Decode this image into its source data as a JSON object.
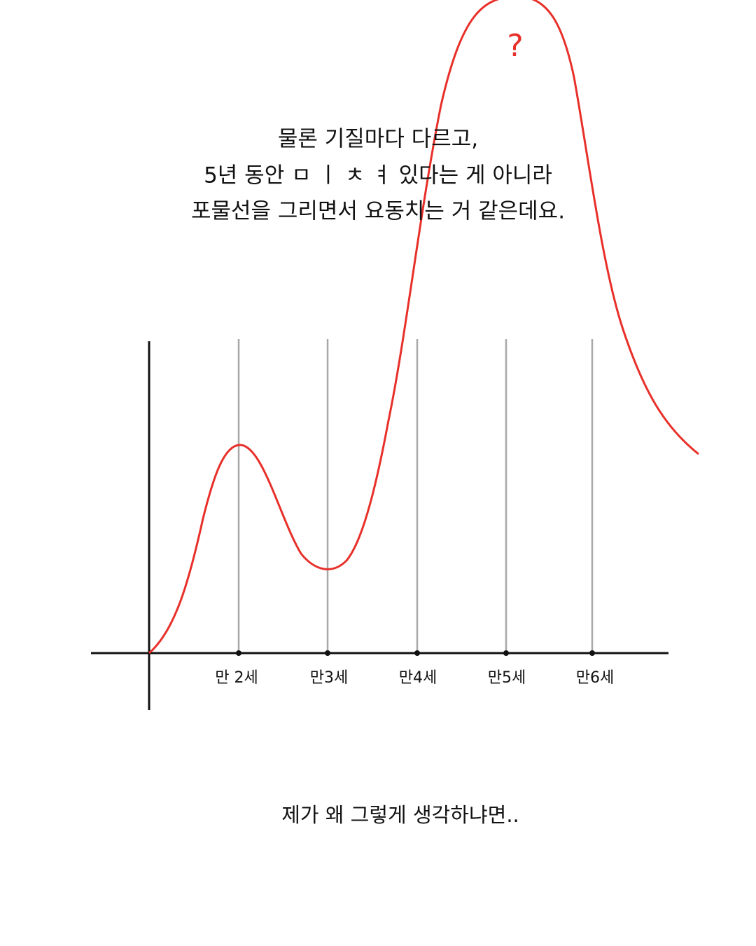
{
  "caption": {
    "lines": [
      "물론 기질마다 다르고,",
      "5년 동안 ㅁ ㅣ ㅊ ㅕ 있다는 게 아니라",
      "포물선을 그리면서 요동치는 거 같은데요."
    ]
  },
  "curve": {
    "mark": "?"
  },
  "axis": {
    "labels": [
      "만 2세",
      "만3세",
      "만4세",
      "만5세",
      "만6세"
    ]
  },
  "footer": {
    "text": "제가 왜 그렇게 생각하냐면.."
  }
}
